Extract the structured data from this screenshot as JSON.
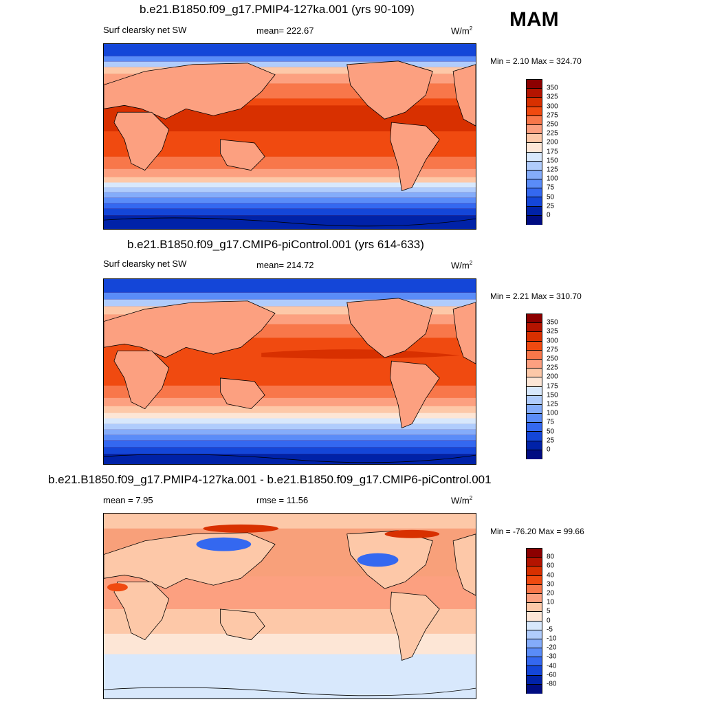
{
  "season": "MAM",
  "panels": [
    {
      "title": "b.e21.B1850.f09_g17.PMIP4-127ka.001 (yrs 90-109)",
      "left_label": "Surf clearsky net SW",
      "center_label": "mean= 222.67",
      "units": "W/m",
      "units_sup": "2",
      "minmax": "Min =   2.10 Max = 324.70",
      "colorbar": {
        "labels": [
          "350",
          "325",
          "300",
          "275",
          "250",
          "225",
          "200",
          "175",
          "150",
          "125",
          "100",
          "75",
          "50",
          "25",
          "0"
        ],
        "colors": [
          "#8c0000",
          "#b41400",
          "#d83000",
          "#f04a10",
          "#f8774a",
          "#fca080",
          "#fdc8a8",
          "#fde6d6",
          "#d8e8fc",
          "#b0ccfc",
          "#84acfa",
          "#5a8cf8",
          "#3468f0",
          "#1446d8",
          "#0022a8",
          "#000c82"
        ]
      }
    },
    {
      "title": "b.e21.B1850.f09_g17.CMIP6-piControl.001 (yrs 614-633)",
      "left_label": "Surf clearsky net SW",
      "center_label": "mean= 214.72",
      "units": "W/m",
      "units_sup": "2",
      "minmax": "Min =   2.21 Max = 310.70",
      "colorbar": {
        "labels": [
          "350",
          "325",
          "300",
          "275",
          "250",
          "225",
          "200",
          "175",
          "150",
          "125",
          "100",
          "75",
          "50",
          "25",
          "0"
        ],
        "colors": [
          "#8c0000",
          "#b41400",
          "#d83000",
          "#f04a10",
          "#f8774a",
          "#fca080",
          "#fdc8a8",
          "#fde6d6",
          "#d8e8fc",
          "#b0ccfc",
          "#84acfa",
          "#5a8cf8",
          "#3468f0",
          "#1446d8",
          "#0022a8",
          "#000c82"
        ]
      }
    },
    {
      "title": "b.e21.B1850.f09_g17.PMIP4-127ka.001 - b.e21.B1850.f09_g17.CMIP6-piControl.001",
      "left_label": "mean =   7.95",
      "center_label": "rmse =  11.56",
      "units": "W/m",
      "units_sup": "2",
      "minmax": "Min = -76.20 Max =  99.66",
      "colorbar": {
        "labels": [
          "80",
          "60",
          "40",
          "30",
          "20",
          "10",
          "5",
          "0",
          "-5",
          "-10",
          "-20",
          "-30",
          "-40",
          "-60",
          "-80"
        ],
        "colors": [
          "#8c0000",
          "#b41400",
          "#d83000",
          "#f04a10",
          "#f8774a",
          "#fca080",
          "#fdc8a8",
          "#fde6d6",
          "#d8e8fc",
          "#b0ccfc",
          "#84acfa",
          "#5a8cf8",
          "#3468f0",
          "#1446d8",
          "#0022a8",
          "#000c82"
        ]
      }
    }
  ]
}
